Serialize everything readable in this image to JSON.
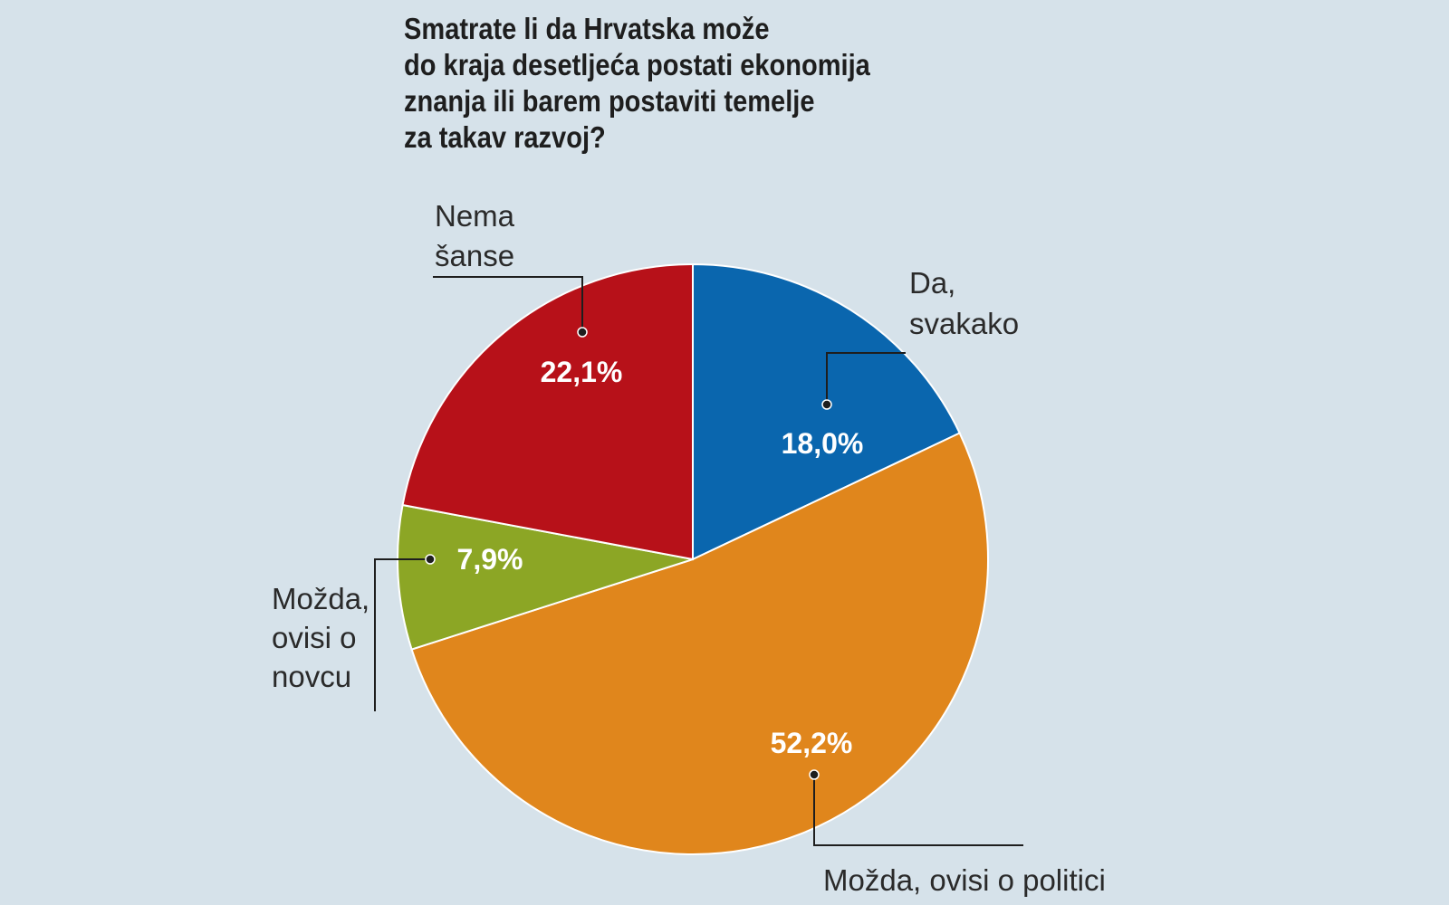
{
  "chart_data": {
    "type": "pie",
    "title_lines": [
      "Smatrate li da Hrvatska može",
      "do kraja desetljeća postati ekonomija",
      "znanja ili barem postaviti temelje",
      "za takav razvoj?"
    ],
    "slices": [
      {
        "label_lines": [
          "Da,",
          "svakako"
        ],
        "value": 18.0,
        "value_label": "18,0%",
        "color": "#0a66ae"
      },
      {
        "label_lines": [
          "Možda, ovisi o politici"
        ],
        "value": 52.2,
        "value_label": "52,2%",
        "color": "#e0861c"
      },
      {
        "label_lines": [
          "Možda,",
          "ovisi o",
          "novcu"
        ],
        "value": 7.9,
        "value_label": "7,9%",
        "color": "#8ca625"
      },
      {
        "label_lines": [
          "Nema",
          "šanse"
        ],
        "value": 22.1,
        "value_label": "22,1%",
        "color": "#b71119"
      }
    ],
    "start_angle_deg": 0,
    "direction": "clockwise",
    "legend": "none"
  }
}
